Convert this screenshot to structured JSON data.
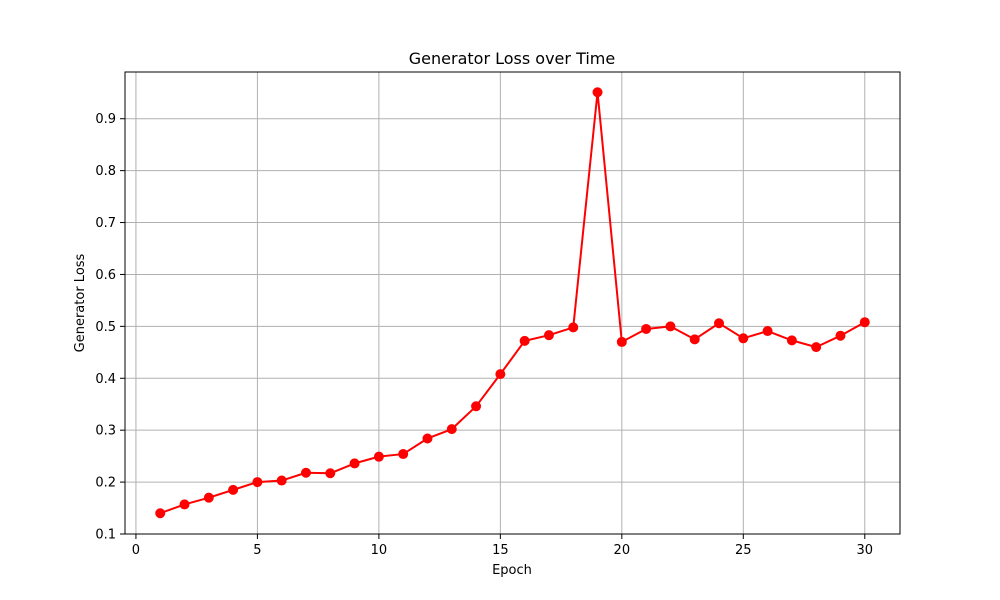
{
  "chart_data": {
    "type": "line",
    "title": "Generator Loss over Time",
    "xlabel": "Epoch",
    "ylabel": "Generator Loss",
    "xlim": [
      -0.45,
      31.45
    ],
    "ylim": [
      0.1,
      0.99
    ],
    "xticks": [
      0,
      5,
      10,
      15,
      20,
      25,
      30
    ],
    "yticks": [
      0.1,
      0.2,
      0.3,
      0.4,
      0.5,
      0.6,
      0.7,
      0.8,
      0.9
    ],
    "grid": true,
    "series": [
      {
        "name": "Generator Loss",
        "color": "#ff0000",
        "marker": "circle",
        "x": [
          1,
          2,
          3,
          4,
          5,
          6,
          7,
          8,
          9,
          10,
          11,
          12,
          13,
          14,
          15,
          16,
          17,
          18,
          19,
          20,
          21,
          22,
          23,
          24,
          25,
          26,
          27,
          28,
          29,
          30
        ],
        "values": [
          0.14,
          0.157,
          0.17,
          0.185,
          0.2,
          0.203,
          0.218,
          0.217,
          0.236,
          0.249,
          0.254,
          0.284,
          0.302,
          0.346,
          0.408,
          0.472,
          0.483,
          0.498,
          0.951,
          0.47,
          0.495,
          0.5,
          0.475,
          0.506,
          0.477,
          0.491,
          0.473,
          0.46,
          0.482,
          0.508
        ]
      }
    ]
  }
}
